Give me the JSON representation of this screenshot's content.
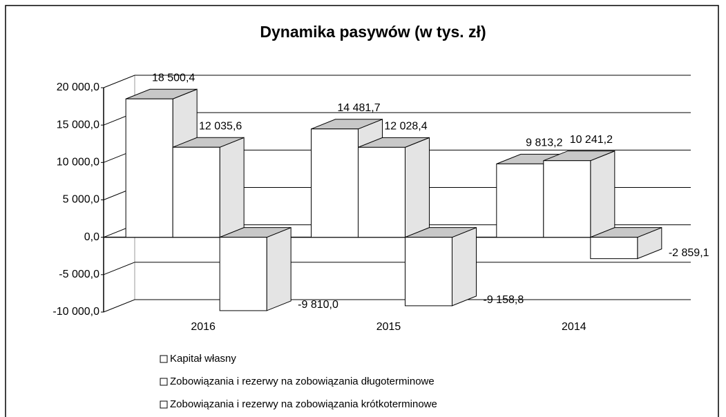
{
  "chart_data": {
    "type": "bar3d",
    "title": "Dynamika pasywów (w tys. zł)",
    "categories": [
      "2016",
      "2015",
      "2014"
    ],
    "series": [
      {
        "name": "Kapitał własny",
        "color": "#ffffff",
        "values": [
          18500.4,
          14481.7,
          9813.2
        ],
        "value_labels": [
          "18 500,4",
          "14 481,7",
          "9 813,2"
        ]
      },
      {
        "name": "Zobowiązania i rezerwy na zobowiązania długoterminowe",
        "color": "#ffffff",
        "values": [
          12035.6,
          12028.4,
          10241.2
        ],
        "value_labels": [
          "12 035,6",
          "12 028,4",
          "10 241,2"
        ]
      },
      {
        "name": "Zobowiązania i rezerwy na zobowiązania krótkoterminowe",
        "color": "#ffffff",
        "values": [
          -9810.0,
          -9158.8,
          -2859.1
        ],
        "value_labels": [
          "-9 810,0",
          "-9 158,8",
          "-2 859,1"
        ]
      }
    ],
    "ylim": [
      -10000,
      20000
    ],
    "yticks": [
      {
        "value": -10000,
        "label": "-10 000,0"
      },
      {
        "value": -5000,
        "label": "-5 000,0"
      },
      {
        "value": 0,
        "label": "0,0"
      },
      {
        "value": 5000,
        "label": "5 000,0"
      },
      {
        "value": 10000,
        "label": "10 000,0"
      },
      {
        "value": 15000,
        "label": "15 000,0"
      },
      {
        "value": 20000,
        "label": "20 000,0"
      }
    ],
    "grid": true,
    "legend": "bottom"
  }
}
